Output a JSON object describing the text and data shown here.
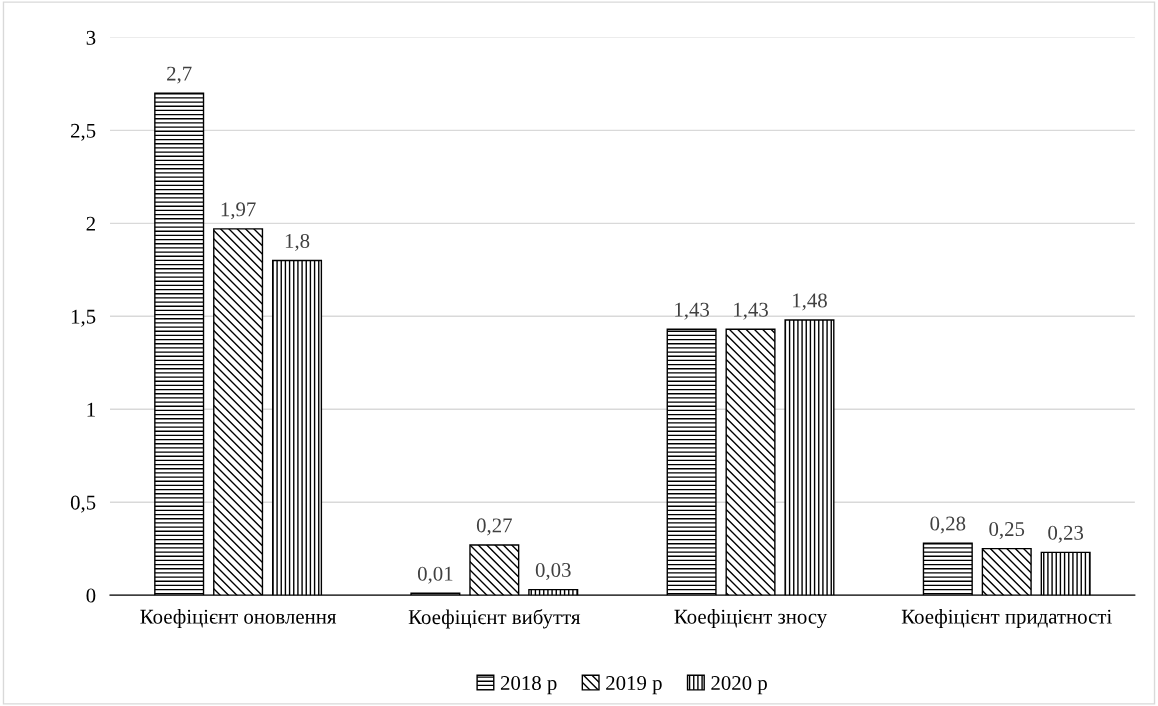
{
  "chart_data": {
    "type": "bar",
    "categories": [
      "Коефіцієнт оновлення",
      "Коефіцієнт вибуття",
      "Коефіцієнт зносу",
      "Коефіцієнт придатності"
    ],
    "series": [
      {
        "name": "2018 р",
        "color": "#000000",
        "values": [
          2.7,
          0.01,
          1.43,
          0.28
        ],
        "value_labels": [
          "2,7",
          "0,01",
          "1,43",
          "0,28"
        ]
      },
      {
        "name": "2019 р",
        "color": "#000000",
        "values": [
          1.97,
          0.27,
          1.43,
          0.25
        ],
        "value_labels": [
          "1,97",
          "0,27",
          "1,43",
          "0,25"
        ]
      },
      {
        "name": "2020 р",
        "color": "#000000",
        "values": [
          1.8,
          0.03,
          1.48,
          0.23
        ],
        "value_labels": [
          "1,8",
          "0,03",
          "1,48",
          "0,23"
        ]
      }
    ],
    "ylim": [
      0,
      3
    ],
    "yticks": [
      0,
      {
        "value": 0.5,
        "label": "0,5"
      },
      1,
      {
        "value": 1.5,
        "label": "1,5"
      },
      2,
      {
        "value": 2.5,
        "label": "2,5"
      },
      3
    ],
    "grid": "y",
    "legend": "bottom"
  }
}
